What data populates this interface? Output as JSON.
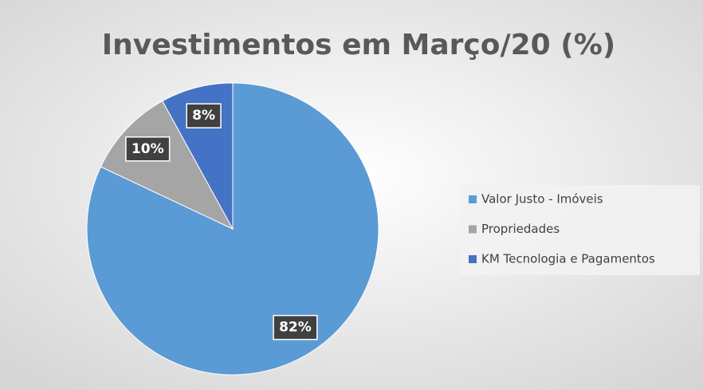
{
  "chart_data": {
    "type": "pie",
    "title": "Investimentos em Março/20 (%)",
    "series": [
      {
        "name": "Valor Justo - Imóveis",
        "color": "#5b9bd5",
        "values": [
          82
        ],
        "value_labels": [
          "82%"
        ]
      },
      {
        "name": "Propriedades",
        "color": "#a5a5a5",
        "values": [
          10
        ],
        "value_labels": [
          "10%"
        ]
      },
      {
        "name": "KM Tecnologia e Pagamentos",
        "color": "#4472c4",
        "values": [
          8
        ],
        "value_labels": [
          "8%"
        ]
      }
    ],
    "legend": "right"
  }
}
